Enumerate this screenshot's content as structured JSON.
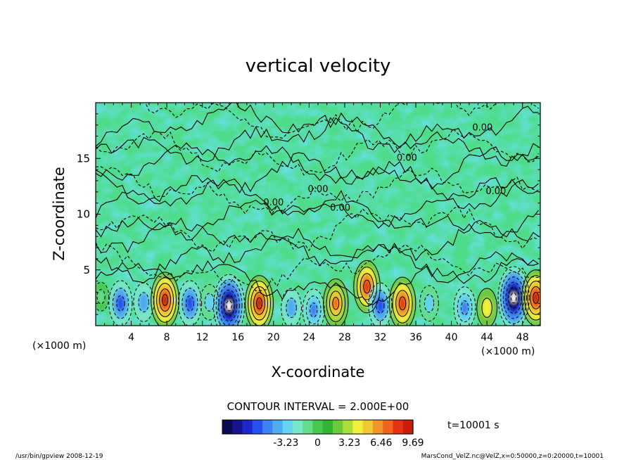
{
  "chart_data": {
    "type": "heatmap",
    "title": "vertical velocity",
    "xlabel": "X-coordinate",
    "ylabel": "Z-coordinate",
    "x_unit_left": "(×1000 m)",
    "x_unit_right": "(×1000 m)",
    "xlim": [
      0,
      50
    ],
    "ylim": [
      0,
      20
    ],
    "x_ticks": [
      "4",
      "8",
      "12",
      "16",
      "20",
      "24",
      "28",
      "32",
      "36",
      "40",
      "44",
      "48"
    ],
    "x_tick_values": [
      4,
      8,
      12,
      16,
      20,
      24,
      28,
      32,
      36,
      40,
      44,
      48
    ],
    "y_ticks": [
      "5",
      "10",
      "15"
    ],
    "y_tick_values": [
      5,
      10,
      15
    ],
    "contour_interval_text": "CONTOUR INTERVAL = 2.000E+00",
    "contour_labels": [
      {
        "text": "0.00",
        "x": 43.5,
        "z": 17.5
      },
      {
        "text": "0.00",
        "x": 35.0,
        "z": 14.8
      },
      {
        "text": "0.00",
        "x": 45.0,
        "z": 11.8
      },
      {
        "text": "0.00",
        "x": 25.0,
        "z": 12.0
      },
      {
        "text": "0.00",
        "x": 27.5,
        "z": 10.3
      },
      {
        "text": "0.00",
        "x": 20.0,
        "z": 10.8
      }
    ],
    "time_label": "t=10001 s",
    "colorbar": {
      "min": -9.69,
      "max": 9.69,
      "tick_labels": [
        "-3.23",
        "0",
        "3.23",
        "6.46",
        "9.69"
      ],
      "tick_values": [
        -3.23,
        0,
        3.23,
        6.46,
        9.69
      ],
      "colors": [
        "#0a0a50",
        "#14148c",
        "#1e28c8",
        "#2850f0",
        "#3c82f0",
        "#50aaf0",
        "#64d2f0",
        "#78e6c8",
        "#64dc8c",
        "#46c850",
        "#32b432",
        "#6ec83c",
        "#aadc3c",
        "#f0f03c",
        "#f0c832",
        "#f09628",
        "#f0641e",
        "#e63214",
        "#c81e0a"
      ]
    },
    "features": [
      {
        "x": 0.6,
        "z": 2.6,
        "w": -1,
        "type": "up-positive"
      },
      {
        "x": 2.8,
        "z": 2.0,
        "w": -6
      },
      {
        "x": 5.4,
        "z": 2.1,
        "w": -4
      },
      {
        "x": 7.8,
        "z": 2.3,
        "w": 9
      },
      {
        "x": 10.6,
        "z": 2.0,
        "w": -6
      },
      {
        "x": 12.8,
        "z": 2.1,
        "w": -3
      },
      {
        "x": 15.0,
        "z": 1.8,
        "w": -11
      },
      {
        "x": 18.4,
        "z": 2.0,
        "w": 9
      },
      {
        "x": 22.0,
        "z": 1.6,
        "w": -4
      },
      {
        "x": 24.5,
        "z": 1.4,
        "w": -5
      },
      {
        "x": 27.0,
        "z": 2.0,
        "w": 7
      },
      {
        "x": 30.5,
        "z": 3.5,
        "w": 8
      },
      {
        "x": 32.0,
        "z": 1.8,
        "w": -6
      },
      {
        "x": 34.5,
        "z": 2.0,
        "w": 8
      },
      {
        "x": 37.5,
        "z": 2.0,
        "w": -3
      },
      {
        "x": 41.5,
        "z": 1.6,
        "w": -5
      },
      {
        "x": 44.0,
        "z": 1.6,
        "w": 4
      },
      {
        "x": 47.0,
        "z": 2.5,
        "w": -11
      },
      {
        "x": 49.5,
        "z": 2.5,
        "w": 9
      }
    ]
  },
  "footer": {
    "left": "/usr/bin/gpview  2008-12-19",
    "right": "MarsCond_VelZ.nc@VelZ,x=0:50000,z=0:20000,t=10001"
  }
}
